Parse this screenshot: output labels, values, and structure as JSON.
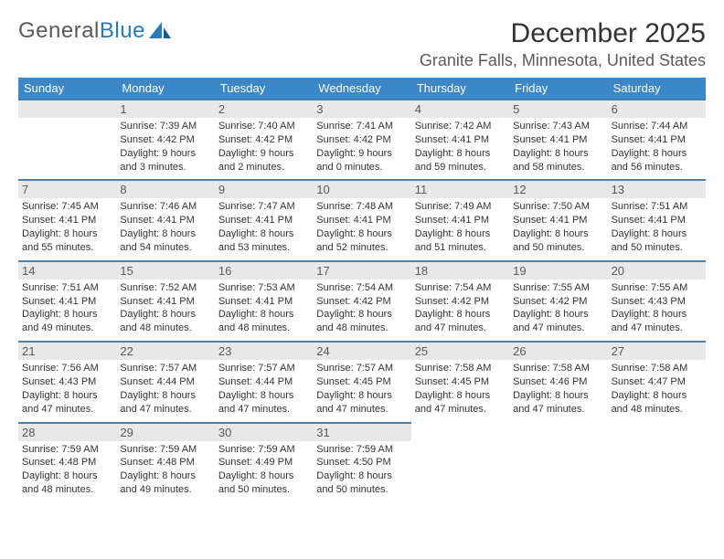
{
  "logo": {
    "part1": "General",
    "part2": "Blue"
  },
  "title": "December 2025",
  "location": "Granite Falls, Minnesota, United States",
  "colors": {
    "header_bg": "#3b87c8",
    "header_text": "#ffffff",
    "row_border": "#4a7fa8",
    "daynum_bg": "#e8e8e8",
    "daynum_text": "#5a5a5a",
    "body_text": "#333333",
    "page_bg": "#ffffff"
  },
  "typography": {
    "title_fontsize": 30,
    "location_fontsize": 18,
    "header_fontsize": 13,
    "daynum_fontsize": 13,
    "cell_fontsize": 11
  },
  "dayNames": [
    "Sunday",
    "Monday",
    "Tuesday",
    "Wednesday",
    "Thursday",
    "Friday",
    "Saturday"
  ],
  "leading_blanks": 1,
  "days": [
    {
      "n": "1",
      "sunrise": "Sunrise: 7:39 AM",
      "sunset": "Sunset: 4:42 PM",
      "d1": "Daylight: 9 hours",
      "d2": "and 3 minutes."
    },
    {
      "n": "2",
      "sunrise": "Sunrise: 7:40 AM",
      "sunset": "Sunset: 4:42 PM",
      "d1": "Daylight: 9 hours",
      "d2": "and 2 minutes."
    },
    {
      "n": "3",
      "sunrise": "Sunrise: 7:41 AM",
      "sunset": "Sunset: 4:42 PM",
      "d1": "Daylight: 9 hours",
      "d2": "and 0 minutes."
    },
    {
      "n": "4",
      "sunrise": "Sunrise: 7:42 AM",
      "sunset": "Sunset: 4:41 PM",
      "d1": "Daylight: 8 hours",
      "d2": "and 59 minutes."
    },
    {
      "n": "5",
      "sunrise": "Sunrise: 7:43 AM",
      "sunset": "Sunset: 4:41 PM",
      "d1": "Daylight: 8 hours",
      "d2": "and 58 minutes."
    },
    {
      "n": "6",
      "sunrise": "Sunrise: 7:44 AM",
      "sunset": "Sunset: 4:41 PM",
      "d1": "Daylight: 8 hours",
      "d2": "and 56 minutes."
    },
    {
      "n": "7",
      "sunrise": "Sunrise: 7:45 AM",
      "sunset": "Sunset: 4:41 PM",
      "d1": "Daylight: 8 hours",
      "d2": "and 55 minutes."
    },
    {
      "n": "8",
      "sunrise": "Sunrise: 7:46 AM",
      "sunset": "Sunset: 4:41 PM",
      "d1": "Daylight: 8 hours",
      "d2": "and 54 minutes."
    },
    {
      "n": "9",
      "sunrise": "Sunrise: 7:47 AM",
      "sunset": "Sunset: 4:41 PM",
      "d1": "Daylight: 8 hours",
      "d2": "and 53 minutes."
    },
    {
      "n": "10",
      "sunrise": "Sunrise: 7:48 AM",
      "sunset": "Sunset: 4:41 PM",
      "d1": "Daylight: 8 hours",
      "d2": "and 52 minutes."
    },
    {
      "n": "11",
      "sunrise": "Sunrise: 7:49 AM",
      "sunset": "Sunset: 4:41 PM",
      "d1": "Daylight: 8 hours",
      "d2": "and 51 minutes."
    },
    {
      "n": "12",
      "sunrise": "Sunrise: 7:50 AM",
      "sunset": "Sunset: 4:41 PM",
      "d1": "Daylight: 8 hours",
      "d2": "and 50 minutes."
    },
    {
      "n": "13",
      "sunrise": "Sunrise: 7:51 AM",
      "sunset": "Sunset: 4:41 PM",
      "d1": "Daylight: 8 hours",
      "d2": "and 50 minutes."
    },
    {
      "n": "14",
      "sunrise": "Sunrise: 7:51 AM",
      "sunset": "Sunset: 4:41 PM",
      "d1": "Daylight: 8 hours",
      "d2": "and 49 minutes."
    },
    {
      "n": "15",
      "sunrise": "Sunrise: 7:52 AM",
      "sunset": "Sunset: 4:41 PM",
      "d1": "Daylight: 8 hours",
      "d2": "and 48 minutes."
    },
    {
      "n": "16",
      "sunrise": "Sunrise: 7:53 AM",
      "sunset": "Sunset: 4:41 PM",
      "d1": "Daylight: 8 hours",
      "d2": "and 48 minutes."
    },
    {
      "n": "17",
      "sunrise": "Sunrise: 7:54 AM",
      "sunset": "Sunset: 4:42 PM",
      "d1": "Daylight: 8 hours",
      "d2": "and 48 minutes."
    },
    {
      "n": "18",
      "sunrise": "Sunrise: 7:54 AM",
      "sunset": "Sunset: 4:42 PM",
      "d1": "Daylight: 8 hours",
      "d2": "and 47 minutes."
    },
    {
      "n": "19",
      "sunrise": "Sunrise: 7:55 AM",
      "sunset": "Sunset: 4:42 PM",
      "d1": "Daylight: 8 hours",
      "d2": "and 47 minutes."
    },
    {
      "n": "20",
      "sunrise": "Sunrise: 7:55 AM",
      "sunset": "Sunset: 4:43 PM",
      "d1": "Daylight: 8 hours",
      "d2": "and 47 minutes."
    },
    {
      "n": "21",
      "sunrise": "Sunrise: 7:56 AM",
      "sunset": "Sunset: 4:43 PM",
      "d1": "Daylight: 8 hours",
      "d2": "and 47 minutes."
    },
    {
      "n": "22",
      "sunrise": "Sunrise: 7:57 AM",
      "sunset": "Sunset: 4:44 PM",
      "d1": "Daylight: 8 hours",
      "d2": "and 47 minutes."
    },
    {
      "n": "23",
      "sunrise": "Sunrise: 7:57 AM",
      "sunset": "Sunset: 4:44 PM",
      "d1": "Daylight: 8 hours",
      "d2": "and 47 minutes."
    },
    {
      "n": "24",
      "sunrise": "Sunrise: 7:57 AM",
      "sunset": "Sunset: 4:45 PM",
      "d1": "Daylight: 8 hours",
      "d2": "and 47 minutes."
    },
    {
      "n": "25",
      "sunrise": "Sunrise: 7:58 AM",
      "sunset": "Sunset: 4:45 PM",
      "d1": "Daylight: 8 hours",
      "d2": "and 47 minutes."
    },
    {
      "n": "26",
      "sunrise": "Sunrise: 7:58 AM",
      "sunset": "Sunset: 4:46 PM",
      "d1": "Daylight: 8 hours",
      "d2": "and 47 minutes."
    },
    {
      "n": "27",
      "sunrise": "Sunrise: 7:58 AM",
      "sunset": "Sunset: 4:47 PM",
      "d1": "Daylight: 8 hours",
      "d2": "and 48 minutes."
    },
    {
      "n": "28",
      "sunrise": "Sunrise: 7:59 AM",
      "sunset": "Sunset: 4:48 PM",
      "d1": "Daylight: 8 hours",
      "d2": "and 48 minutes."
    },
    {
      "n": "29",
      "sunrise": "Sunrise: 7:59 AM",
      "sunset": "Sunset: 4:48 PM",
      "d1": "Daylight: 8 hours",
      "d2": "and 49 minutes."
    },
    {
      "n": "30",
      "sunrise": "Sunrise: 7:59 AM",
      "sunset": "Sunset: 4:49 PM",
      "d1": "Daylight: 8 hours",
      "d2": "and 50 minutes."
    },
    {
      "n": "31",
      "sunrise": "Sunrise: 7:59 AM",
      "sunset": "Sunset: 4:50 PM",
      "d1": "Daylight: 8 hours",
      "d2": "and 50 minutes."
    }
  ]
}
